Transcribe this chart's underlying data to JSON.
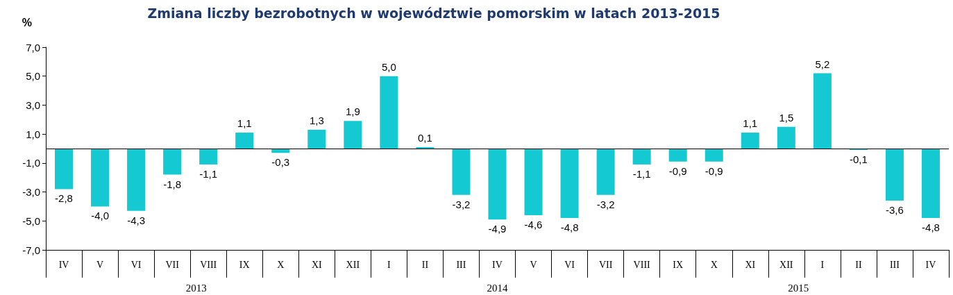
{
  "chart_data": {
    "type": "bar",
    "title": "Zmiana liczby bezrobotnych w województwie pomorskim w latach 2013-2015",
    "ylabel": "%",
    "categories": [
      "IV",
      "V",
      "VI",
      "VII",
      "VIII",
      "IX",
      "X",
      "XI",
      "XII",
      "I",
      "II",
      "III",
      "IV",
      "V",
      "VI",
      "VII",
      "VIII",
      "IX",
      "X",
      "XI",
      "XII",
      "I",
      "II",
      "III",
      "IV"
    ],
    "values": [
      -2.8,
      -4.0,
      -4.3,
      -1.8,
      -1.1,
      1.1,
      -0.3,
      1.3,
      1.9,
      5.0,
      0.1,
      -3.2,
      -4.9,
      -4.6,
      -4.8,
      -3.2,
      -1.1,
      -0.9,
      -0.9,
      1.1,
      1.5,
      5.2,
      -0.1,
      -3.6,
      -4.8
    ],
    "value_labels": [
      "-2,8",
      "-4,0",
      "-4,3",
      "-1,8",
      "-1,1",
      "1,1",
      "-0,3",
      "1,3",
      "1,9",
      "5,0",
      "0,1",
      "-3,2",
      "-4,9",
      "-4,6",
      "-4,8",
      "-3,2",
      "-1,1",
      "-0,9",
      "-0,9",
      "1,1",
      "1,5",
      "5,2",
      "-0,1",
      "-3,6",
      "-4,8"
    ],
    "color": "#14c9d2",
    "ylim": [
      -7,
      7
    ],
    "yticks": [
      {
        "value": -7,
        "label": "-7,0"
      },
      {
        "value": -5,
        "label": "-5,0"
      },
      {
        "value": -3,
        "label": "-3,0"
      },
      {
        "value": -1,
        "label": "-1,0"
      },
      {
        "value": 1,
        "label": "1,0"
      },
      {
        "value": 3,
        "label": "3,0"
      },
      {
        "value": 5,
        "label": "5,0"
      },
      {
        "value": 7,
        "label": "7,0"
      }
    ],
    "annotations": [
      "2013",
      "2014",
      "2015"
    ],
    "ref_lines": [
      {
        "axis": "y",
        "value": 0
      }
    ],
    "grid": false
  }
}
